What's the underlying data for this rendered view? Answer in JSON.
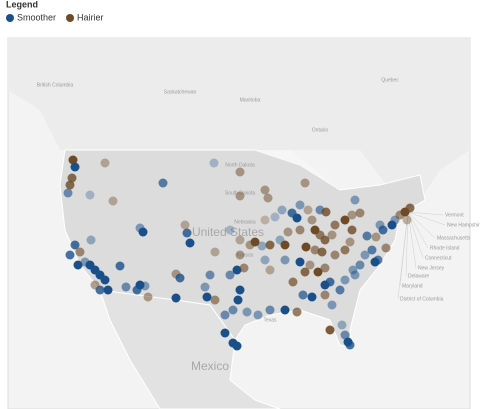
{
  "legend": {
    "title": "Legend",
    "items": [
      {
        "label": "Smoother",
        "color": "#1a4f8a"
      },
      {
        "label": "Hairier",
        "color": "#6e4a26"
      }
    ]
  },
  "map_labels": {
    "country_us": "United States",
    "country_mx": "Mexico",
    "regions": [
      "British Columbia",
      "Saskatchewan",
      "Manitoba",
      "Ontario",
      "Quebec",
      "North Dakota",
      "South Dakota",
      "Nebraska",
      "Kansas",
      "Texas"
    ],
    "northeast": [
      "Vermont",
      "New Hampshire",
      "Massachusetts",
      "Rhode Island",
      "Connecticut",
      "New Jersey",
      "Delaware",
      "Maryland",
      "District of Columbia"
    ]
  }
}
